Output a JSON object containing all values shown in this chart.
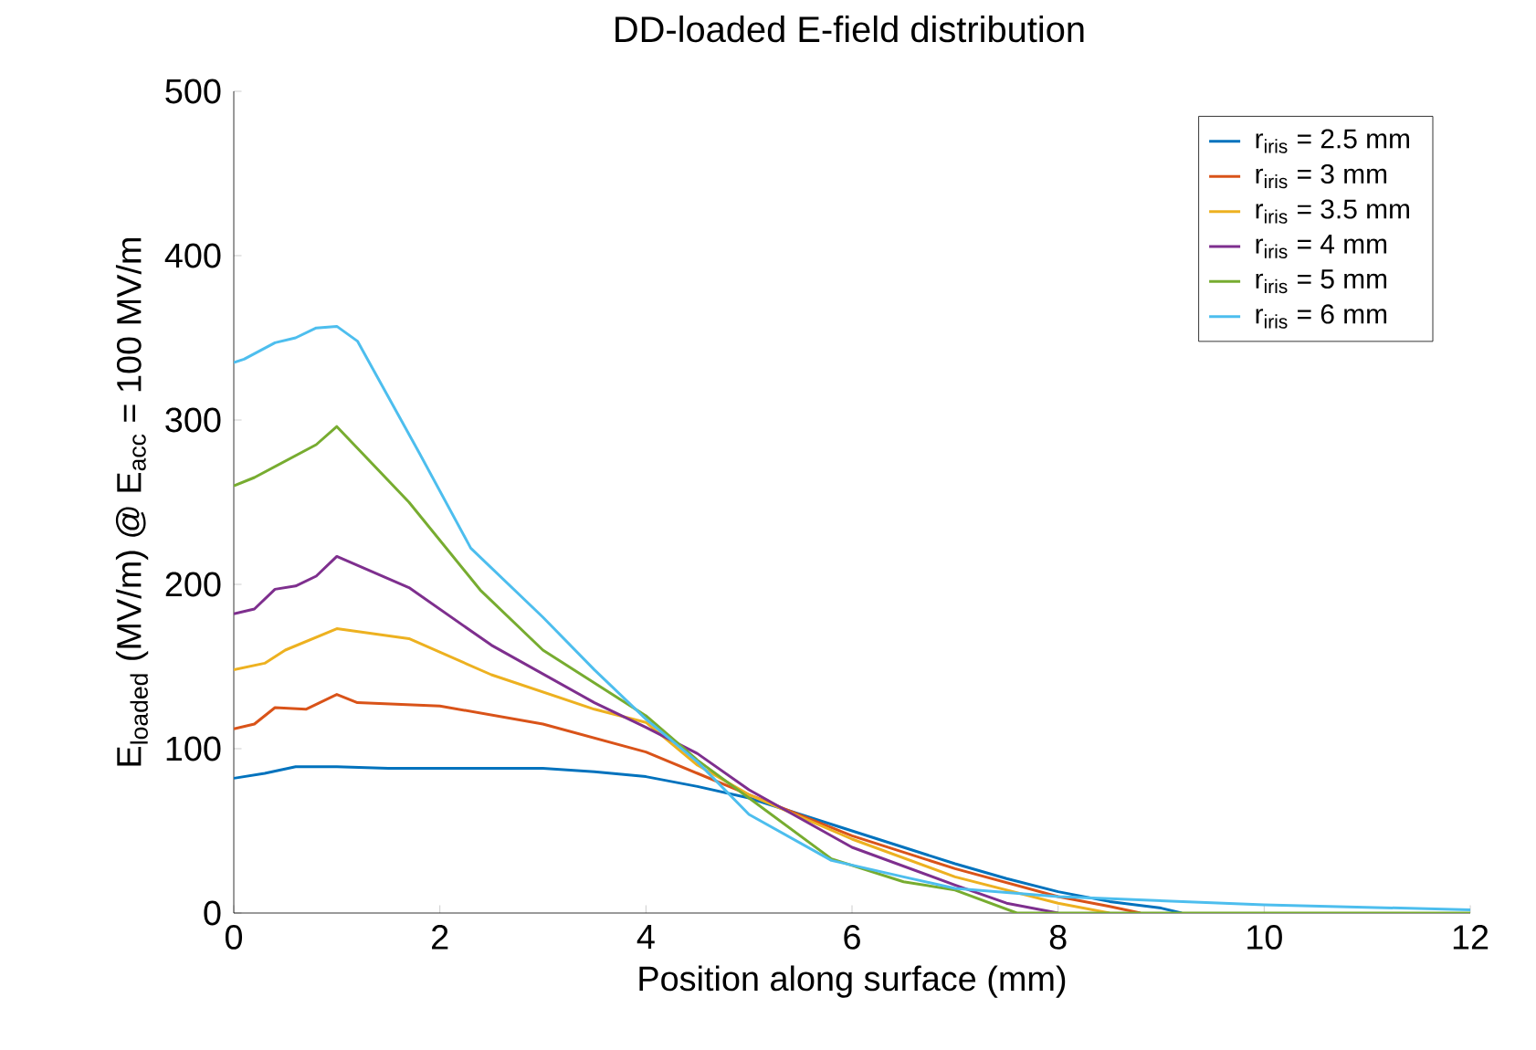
{
  "chart_data": {
    "type": "line",
    "title": "DD-loaded E-field distribution",
    "xlabel": "Position along surface (mm)",
    "ylabel": "E$_{loaded}$ (MV/m) @ E$_{acc}$ = 100 MV/m",
    "xlim": [
      0,
      12
    ],
    "ylim": [
      0,
      500
    ],
    "xticks": [
      0,
      2,
      4,
      6,
      8,
      10,
      12
    ],
    "yticks": [
      0,
      100,
      200,
      300,
      400,
      500
    ],
    "grid": false,
    "legend": "top right",
    "marker": "none",
    "line_style": "solid",
    "series": [
      {
        "name": "r$_{iris}$ = 2.5 mm",
        "color": "#0072bd",
        "x": [
          0,
          0.3,
          0.6,
          1,
          1.5,
          2,
          3,
          3.5,
          4,
          4.5,
          5,
          5.5,
          6,
          6.5,
          7,
          7.5,
          8,
          8.5,
          9,
          9.2
        ],
        "values": [
          82,
          85,
          89,
          89,
          88,
          88,
          88,
          86,
          83,
          77,
          70,
          60,
          50,
          40,
          30,
          21,
          13,
          7,
          3,
          0
        ]
      },
      {
        "name": "r$_{iris}$ = 3 mm",
        "color": "#d95319",
        "x": [
          0,
          0.2,
          0.4,
          0.7,
          1,
          1.2,
          2,
          3,
          4,
          4.5,
          5,
          6,
          7,
          8,
          8.5,
          8.8
        ],
        "values": [
          112,
          115,
          125,
          124,
          133,
          128,
          126,
          115,
          98,
          85,
          72,
          47,
          27,
          10,
          4,
          0
        ]
      },
      {
        "name": "r$_{iris}$ = 3.5 mm",
        "color": "#edb120",
        "x": [
          0,
          0.3,
          0.5,
          1,
          1.7,
          2.5,
          3.5,
          4,
          4.5,
          5,
          6,
          7,
          8,
          8.5
        ],
        "values": [
          148,
          152,
          160,
          173,
          167,
          145,
          124,
          116,
          90,
          72,
          45,
          22,
          6,
          0
        ]
      },
      {
        "name": "r$_{iris}$ = 4 mm",
        "color": "#7e2f8e",
        "x": [
          0,
          0.2,
          0.4,
          0.6,
          0.8,
          1,
          1.7,
          2.5,
          3.5,
          4,
          4.5,
          5,
          6,
          7,
          7.5,
          8
        ],
        "values": [
          182,
          185,
          197,
          199,
          205,
          217,
          198,
          163,
          128,
          113,
          97,
          75,
          40,
          17,
          6,
          0
        ]
      },
      {
        "name": "r$_{iris}$ = 5 mm",
        "color": "#77ac30",
        "x": [
          0,
          0.2,
          0.5,
          0.8,
          1,
          1.7,
          2.4,
          3,
          4,
          4.5,
          5,
          5.8,
          6.5,
          7,
          7.6,
          12
        ],
        "values": [
          260,
          265,
          275,
          285,
          296,
          250,
          196,
          160,
          120,
          93,
          70,
          33,
          19,
          14,
          0,
          0
        ]
      },
      {
        "name": "r$_{iris}$ = 6 mm",
        "color": "#4dbeee",
        "x": [
          0,
          0.1,
          0.4,
          0.6,
          0.8,
          1,
          1.2,
          1.8,
          2.3,
          3,
          3.5,
          4,
          4.5,
          5,
          5.8,
          6.5,
          7,
          8,
          10,
          12
        ],
        "values": [
          335,
          337,
          347,
          350,
          356,
          357,
          348,
          280,
          222,
          180,
          148,
          118,
          92,
          60,
          32,
          22,
          15,
          10,
          5,
          2
        ]
      }
    ]
  }
}
